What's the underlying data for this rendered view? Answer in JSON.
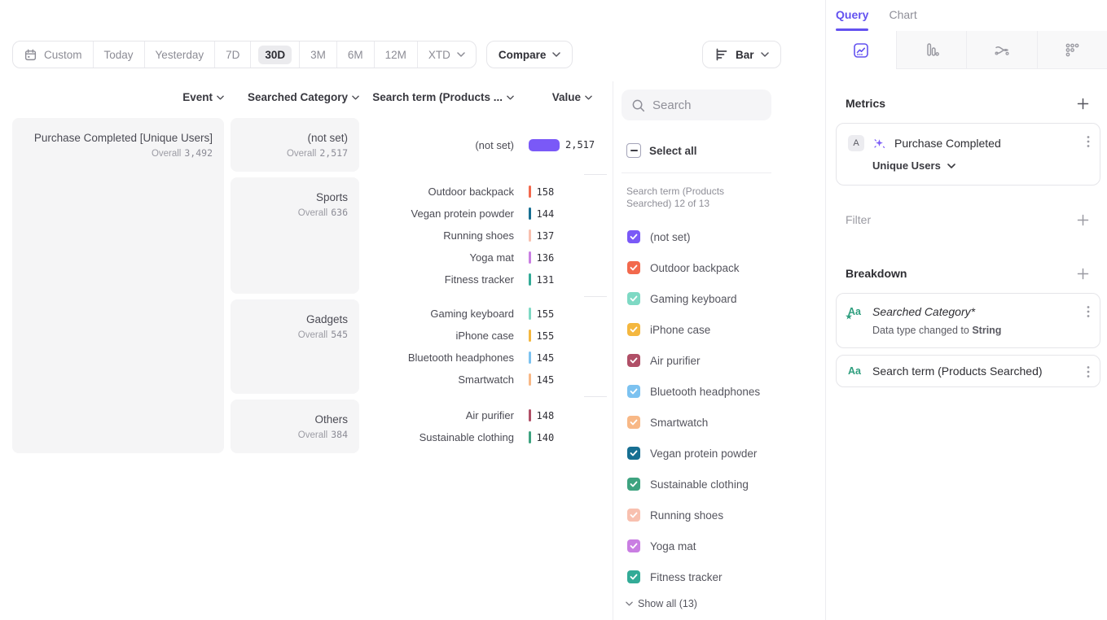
{
  "accent": "#6352f0",
  "toolbar": {
    "date_ranges": [
      "Custom",
      "Today",
      "Yesterday",
      "7D",
      "30D",
      "3M",
      "6M",
      "12M",
      "XTD"
    ],
    "selected_range": "30D",
    "compare_label": "Compare",
    "chart_type_label": "Bar"
  },
  "table": {
    "columns": [
      "Event",
      "Searched Category",
      "Search term (Products ...",
      "Value"
    ],
    "overall_label": "Overall",
    "event": {
      "name": "Purchase Completed [Unique Users]",
      "overall": "3,492"
    },
    "max_value": "2,517",
    "groups": [
      {
        "category": "(not set)",
        "overall": "2,517",
        "rows": [
          {
            "term": "(not set)",
            "value": "2,517",
            "color": "#7a59f7"
          }
        ]
      },
      {
        "category": "Sports",
        "overall": "636",
        "rows": [
          {
            "term": "Outdoor backpack",
            "value": "158",
            "color": "#f2694d"
          },
          {
            "term": "Vegan protein powder",
            "value": "144",
            "color": "#176f92"
          },
          {
            "term": "Running shoes",
            "value": "137",
            "color": "#f8c0af"
          },
          {
            "term": "Yoga mat",
            "value": "136",
            "color": "#c97ee2"
          },
          {
            "term": "Fitness tracker",
            "value": "131",
            "color": "#33ab97"
          }
        ]
      },
      {
        "category": "Gadgets",
        "overall": "545",
        "rows": [
          {
            "term": "Gaming keyboard",
            "value": "155",
            "color": "#7ed9c4"
          },
          {
            "term": "iPhone case",
            "value": "155",
            "color": "#f4b73f"
          },
          {
            "term": "Bluetooth headphones",
            "value": "145",
            "color": "#7cc2f0"
          },
          {
            "term": "Smartwatch",
            "value": "145",
            "color": "#f8b886"
          }
        ]
      },
      {
        "category": "Others",
        "overall": "384",
        "rows": [
          {
            "term": "Air purifier",
            "value": "148",
            "color": "#b04f67"
          },
          {
            "term": "Sustainable clothing",
            "value": "140",
            "color": "#3ea380"
          }
        ]
      }
    ]
  },
  "legend": {
    "search_placeholder": "Search",
    "select_all_label": "Select all",
    "group_title": "Search term (Products Searched) 12 of 13",
    "items": [
      {
        "label": "(not set)",
        "color": "#7a59f7"
      },
      {
        "label": "Outdoor backpack",
        "color": "#f2694d"
      },
      {
        "label": "Gaming keyboard",
        "color": "#7ed9c4"
      },
      {
        "label": "iPhone case",
        "color": "#f4b73f"
      },
      {
        "label": "Air purifier",
        "color": "#b04f67"
      },
      {
        "label": "Bluetooth headphones",
        "color": "#7cc2f0"
      },
      {
        "label": "Smartwatch",
        "color": "#f8b886"
      },
      {
        "label": "Vegan protein powder",
        "color": "#176f92"
      },
      {
        "label": "Sustainable clothing",
        "color": "#3ea380"
      },
      {
        "label": "Running shoes",
        "color": "#f8c0af"
      },
      {
        "label": "Yoga mat",
        "color": "#c97ee2"
      },
      {
        "label": "Fitness tracker",
        "color": "#33ab97"
      }
    ],
    "show_all_label": "Show all (13)"
  },
  "sidebar": {
    "tabs": [
      {
        "label": "Query"
      },
      {
        "label": "Chart"
      }
    ],
    "active_tab": "Query",
    "metrics_title": "Metrics",
    "metric_card": {
      "letter": "A",
      "event_name": "Purchase Completed",
      "measurement": "Unique Users"
    },
    "filter_title": "Filter",
    "breakdown_title": "Breakdown",
    "breakdown_cards": [
      {
        "type_icon": "Aa",
        "name": "Searched Category*",
        "note": "Data type changed to",
        "note_emphasis": "String"
      },
      {
        "type_icon": "Aa",
        "name": "Search term (Products Searched)"
      }
    ]
  }
}
